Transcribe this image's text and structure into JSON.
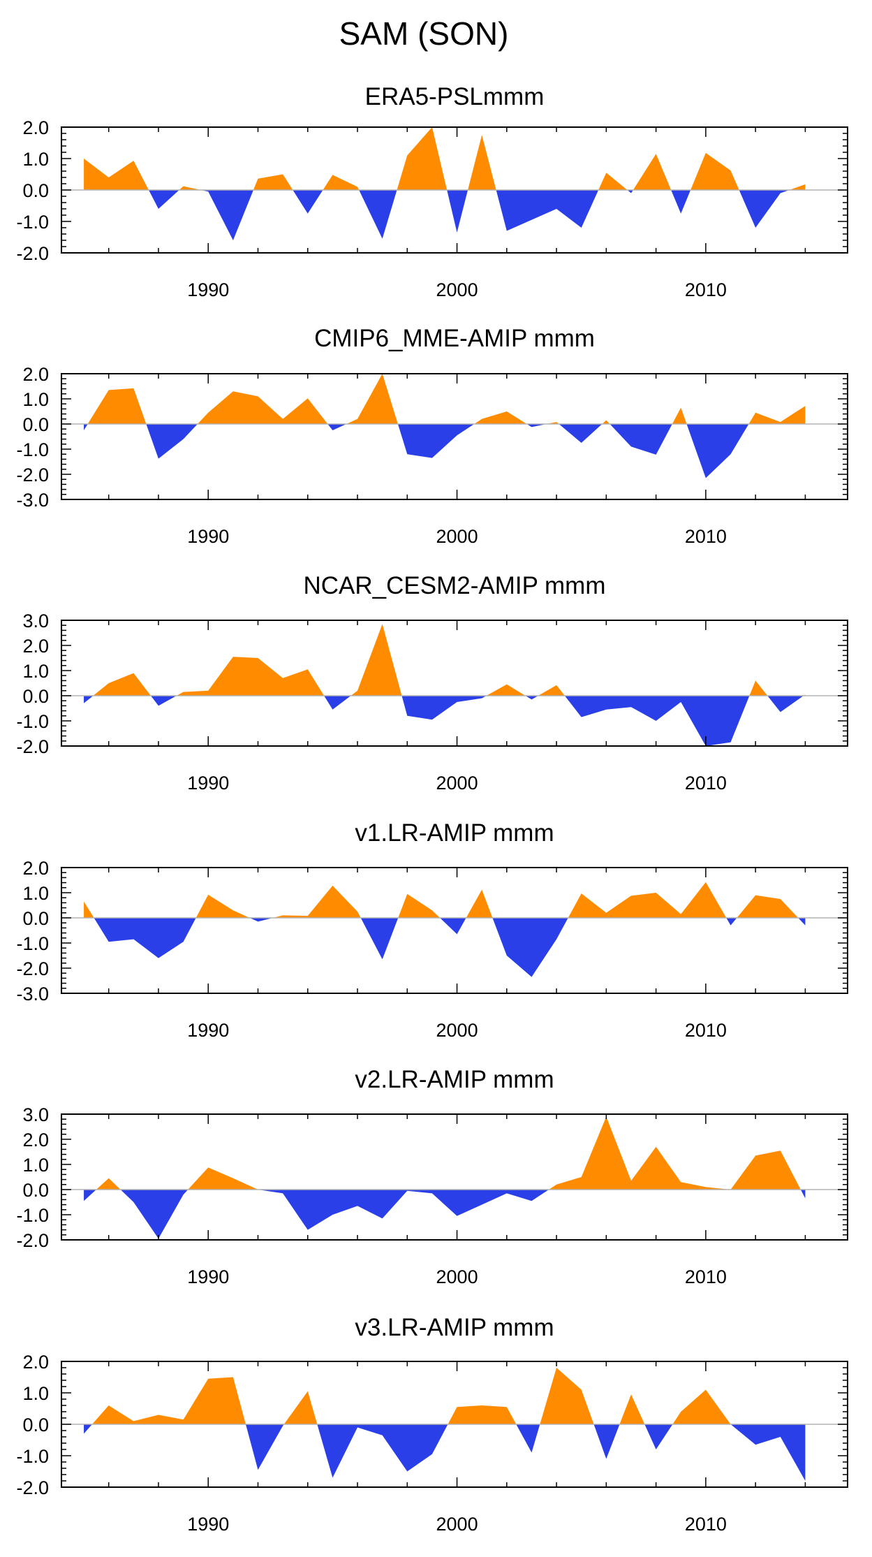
{
  "figure": {
    "title": "SAM (SON)"
  },
  "colors": {
    "positive": "#ff8c00",
    "negative": "#2a3fe8",
    "frame": "#000000",
    "zero_line": "#b3b3b3"
  },
  "chart_data": [
    {
      "type": "area",
      "title": "ERA5-PSLmmm",
      "xlabel": "",
      "ylabel": "",
      "xlim": [
        1984.1,
        2015.7
      ],
      "ylim": [
        -2.0,
        2.0
      ],
      "yticks": [
        -2.0,
        -1.0,
        0.0,
        1.0,
        2.0
      ],
      "ytick_labels": [
        "-2.0",
        "-1.0",
        "0.0",
        "1.0",
        "2.0"
      ],
      "xticks": [
        1990,
        2000,
        2010
      ],
      "xtick_labels": [
        "1990",
        "2000",
        "2010"
      ],
      "x": [
        1985,
        1986,
        1987,
        1988,
        1989,
        1990,
        1991,
        1992,
        1993,
        1994,
        1995,
        1996,
        1997,
        1998,
        1999,
        2000,
        2001,
        2002,
        2003,
        2004,
        2005,
        2006,
        2007,
        2008,
        2009,
        2010,
        2011,
        2012,
        2013,
        2014
      ],
      "values": [
        1.0,
        0.4,
        0.93,
        -0.6,
        0.12,
        -0.05,
        -1.6,
        0.36,
        0.5,
        -0.75,
        0.48,
        0.1,
        -1.55,
        1.1,
        2.0,
        -1.35,
        1.75,
        -1.3,
        -0.95,
        -0.6,
        -1.2,
        0.55,
        -0.1,
        1.15,
        -0.75,
        1.18,
        0.62,
        -1.2,
        -0.1,
        0.18
      ]
    },
    {
      "type": "area",
      "title": "CMIP6_MME-AMIP  mmm",
      "xlabel": "",
      "ylabel": "",
      "xlim": [
        1984.1,
        2015.7
      ],
      "ylim": [
        -3.0,
        2.0
      ],
      "yticks": [
        -3.0,
        -2.0,
        -1.0,
        0.0,
        1.0,
        2.0
      ],
      "ytick_labels": [
        "-3.0",
        "-2.0",
        "-1.0",
        "0.0",
        "1.0",
        "2.0"
      ],
      "xticks": [
        1990,
        2000,
        2010
      ],
      "xtick_labels": [
        "1990",
        "2000",
        "2010"
      ],
      "x": [
        1985,
        1986,
        1987,
        1988,
        1989,
        1990,
        1991,
        1992,
        1993,
        1994,
        1995,
        1996,
        1997,
        1998,
        1999,
        2000,
        2001,
        2002,
        2003,
        2004,
        2005,
        2006,
        2007,
        2008,
        2009,
        2010,
        2011,
        2012,
        2013,
        2014
      ],
      "values": [
        -0.25,
        1.35,
        1.42,
        -1.38,
        -0.6,
        0.45,
        1.3,
        1.1,
        0.2,
        1.02,
        -0.25,
        0.2,
        2.0,
        -1.2,
        -1.35,
        -0.45,
        0.2,
        0.5,
        -0.12,
        0.08,
        -0.75,
        0.15,
        -0.9,
        -1.22,
        0.65,
        -2.15,
        -1.2,
        0.45,
        0.08,
        0.72
      ]
    },
    {
      "type": "area",
      "title": "NCAR_CESM2-AMIP  mmm",
      "xlabel": "",
      "ylabel": "",
      "xlim": [
        1984.1,
        2015.7
      ],
      "ylim": [
        -2.0,
        3.0
      ],
      "yticks": [
        -2.0,
        -1.0,
        0.0,
        1.0,
        2.0,
        3.0
      ],
      "ytick_labels": [
        "-2.0",
        "-1.0",
        "0.0",
        "1.0",
        "2.0",
        "3.0"
      ],
      "xticks": [
        1990,
        2000,
        2010
      ],
      "xtick_labels": [
        "1990",
        "2000",
        "2010"
      ],
      "x": [
        1985,
        1986,
        1987,
        1988,
        1989,
        1990,
        1991,
        1992,
        1993,
        1994,
        1995,
        1996,
        1997,
        1998,
        1999,
        2000,
        2001,
        2002,
        2003,
        2004,
        2005,
        2006,
        2007,
        2008,
        2009,
        2010,
        2011,
        2012,
        2013,
        2014
      ],
      "values": [
        -0.3,
        0.5,
        0.9,
        -0.4,
        0.15,
        0.2,
        1.55,
        1.5,
        0.7,
        1.05,
        -0.55,
        0.2,
        2.85,
        -0.8,
        -0.95,
        -0.25,
        -0.1,
        0.45,
        -0.15,
        0.42,
        -0.85,
        -0.55,
        -0.45,
        -1.0,
        -0.25,
        -2.0,
        -1.85,
        0.6,
        -0.65,
        0.05
      ]
    },
    {
      "type": "area",
      "title": "v1.LR-AMIP  mmm",
      "xlabel": "",
      "ylabel": "",
      "xlim": [
        1984.1,
        2015.7
      ],
      "ylim": [
        -3.0,
        2.0
      ],
      "yticks": [
        -3.0,
        -2.0,
        -1.0,
        0.0,
        1.0,
        2.0
      ],
      "ytick_labels": [
        "-3.0",
        "-2.0",
        "-1.0",
        "0.0",
        "1.0",
        "2.0"
      ],
      "xticks": [
        1990,
        2000,
        2010
      ],
      "xtick_labels": [
        "1990",
        "2000",
        "2010"
      ],
      "x": [
        1985,
        1986,
        1987,
        1988,
        1989,
        1990,
        1991,
        1992,
        1993,
        1994,
        1995,
        1996,
        1997,
        1998,
        1999,
        2000,
        2001,
        2002,
        2003,
        2004,
        2005,
        2006,
        2007,
        2008,
        2009,
        2010,
        2011,
        2012,
        2013,
        2014
      ],
      "values": [
        0.65,
        -0.95,
        -0.85,
        -1.6,
        -0.95,
        0.92,
        0.3,
        -0.15,
        0.1,
        0.08,
        1.28,
        0.25,
        -1.65,
        0.95,
        0.3,
        -0.65,
        1.12,
        -1.5,
        -2.35,
        -0.85,
        0.97,
        0.2,
        0.88,
        1.0,
        0.15,
        1.42,
        -0.3,
        0.9,
        0.75,
        -0.3
      ]
    },
    {
      "type": "area",
      "title": "v2.LR-AMIP  mmm",
      "xlabel": "",
      "ylabel": "",
      "xlim": [
        1984.1,
        2015.7
      ],
      "ylim": [
        -2.0,
        3.0
      ],
      "yticks": [
        -2.0,
        -1.0,
        0.0,
        1.0,
        2.0,
        3.0
      ],
      "ytick_labels": [
        "-2.0",
        "-1.0",
        "0.0",
        "1.0",
        "2.0",
        "3.0"
      ],
      "xticks": [
        1990,
        2000,
        2010
      ],
      "xtick_labels": [
        "1990",
        "2000",
        "2010"
      ],
      "x": [
        1985,
        1986,
        1987,
        1988,
        1989,
        1990,
        1991,
        1992,
        1993,
        1994,
        1995,
        1996,
        1997,
        1998,
        1999,
        2000,
        2001,
        2002,
        2003,
        2004,
        2005,
        2006,
        2007,
        2008,
        2009,
        2010,
        2011,
        2012,
        2013,
        2014
      ],
      "values": [
        -0.45,
        0.45,
        -0.5,
        -1.95,
        -0.2,
        0.88,
        0.45,
        0.0,
        -0.15,
        -1.6,
        -1.0,
        -0.65,
        -1.15,
        -0.05,
        -0.15,
        -1.05,
        -0.6,
        -0.15,
        -0.45,
        0.2,
        0.5,
        2.9,
        0.35,
        1.7,
        0.3,
        0.1,
        0.0,
        1.35,
        1.55,
        -0.35
      ]
    },
    {
      "type": "area",
      "title": "v3.LR-AMIP  mmm",
      "xlabel": "",
      "ylabel": "",
      "xlim": [
        1984.1,
        2015.7
      ],
      "ylim": [
        -2.0,
        2.0
      ],
      "yticks": [
        -2.0,
        -1.0,
        0.0,
        1.0,
        2.0
      ],
      "ytick_labels": [
        "-2.0",
        "-1.0",
        "0.0",
        "1.0",
        "2.0"
      ],
      "xticks": [
        1990,
        2000,
        2010
      ],
      "xtick_labels": [
        "1990",
        "2000",
        "2010"
      ],
      "x": [
        1985,
        1986,
        1987,
        1988,
        1989,
        1990,
        1991,
        1992,
        1993,
        1994,
        1995,
        1996,
        1997,
        1998,
        1999,
        2000,
        2001,
        2002,
        2003,
        2004,
        2005,
        2006,
        2007,
        2008,
        2009,
        2010,
        2011,
        2012,
        2013,
        2014
      ],
      "values": [
        -0.3,
        0.6,
        0.1,
        0.3,
        0.15,
        1.45,
        1.5,
        -1.45,
        -0.05,
        1.05,
        -1.7,
        -0.1,
        -0.35,
        -1.5,
        -0.95,
        0.55,
        0.6,
        0.55,
        -0.9,
        1.8,
        1.1,
        -1.1,
        0.95,
        -0.8,
        0.4,
        1.1,
        0.0,
        -0.65,
        -0.4,
        -1.8
      ]
    }
  ]
}
